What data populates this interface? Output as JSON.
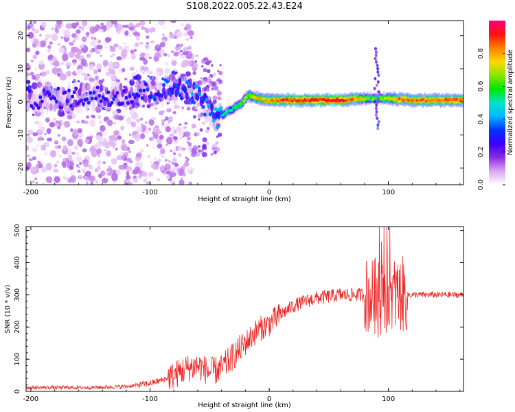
{
  "figure": {
    "title": "S108.2022.005.22.43.E24"
  },
  "chart_data": [
    {
      "type": "heatmap",
      "xlabel": "Height of straight line (km)",
      "ylabel": "Frequency (Hz)",
      "xlim": [
        -204,
        163
      ],
      "ylim": [
        -25,
        24.5
      ],
      "xticks": [
        -200,
        -100,
        0,
        100
      ],
      "yticks": [
        -20,
        -10,
        0,
        10,
        20
      ],
      "colorbar": {
        "label": "Normalized spectral amplitude",
        "range": [
          0,
          1
        ],
        "ticks": [
          0.0,
          0.2,
          0.4,
          0.6,
          0.8
        ],
        "colors": [
          "#ffffff",
          "#d9a6f2",
          "#8a2be2",
          "#3a00ff",
          "#0033ff",
          "#00b7ff",
          "#00e5c8",
          "#00e600",
          "#8ae600",
          "#ffd700",
          "#ff8000",
          "#ff1010",
          "#ff007f"
        ]
      },
      "ridge": [
        {
          "x": -200,
          "y": 1
        },
        {
          "x": -180,
          "y": 1
        },
        {
          "x": -160,
          "y": 1.5
        },
        {
          "x": -140,
          "y": 2
        },
        {
          "x": -120,
          "y": 2
        },
        {
          "x": -100,
          "y": 3
        },
        {
          "x": -85,
          "y": 4
        },
        {
          "x": -70,
          "y": 4
        },
        {
          "x": -60,
          "y": 2
        },
        {
          "x": -52,
          "y": -2
        },
        {
          "x": -44,
          "y": -5
        },
        {
          "x": -35,
          "y": -3
        },
        {
          "x": -25,
          "y": -1
        },
        {
          "x": -17,
          "y": 2
        },
        {
          "x": -10,
          "y": 1
        },
        {
          "x": 0,
          "y": 0.5
        },
        {
          "x": 20,
          "y": 0.5
        },
        {
          "x": 40,
          "y": 0.5
        },
        {
          "x": 60,
          "y": 0.5
        },
        {
          "x": 80,
          "y": 1
        },
        {
          "x": 90,
          "y": 1
        },
        {
          "x": 100,
          "y": 1
        },
        {
          "x": 120,
          "y": 0.5
        },
        {
          "x": 163,
          "y": 0.5
        }
      ],
      "amplitude": [
        {
          "x": -200,
          "v": 0.25
        },
        {
          "x": -150,
          "v": 0.28
        },
        {
          "x": -100,
          "v": 0.3
        },
        {
          "x": -75,
          "v": 0.35
        },
        {
          "x": -50,
          "v": 0.4
        },
        {
          "x": -30,
          "v": 0.55
        },
        {
          "x": -10,
          "v": 0.75
        },
        {
          "x": 20,
          "v": 0.9
        },
        {
          "x": 60,
          "v": 0.95
        },
        {
          "x": 90,
          "v": 0.6
        },
        {
          "x": 110,
          "v": 0.85
        },
        {
          "x": 163,
          "v": 0.85
        }
      ]
    },
    {
      "type": "line",
      "xlabel": "Height of straight line (km)",
      "ylabel": "SNR (10 * v/v)",
      "xlim": [
        -204,
        163
      ],
      "ylim": [
        0,
        512
      ],
      "xticks": [
        -200,
        -100,
        0,
        100
      ],
      "yticks": [
        0,
        100,
        200,
        300,
        400,
        500
      ],
      "series": [
        {
          "color": "#ee2222",
          "trend": [
            {
              "x": -204,
              "y": 12
            },
            {
              "x": -150,
              "y": 12
            },
            {
              "x": -120,
              "y": 15
            },
            {
              "x": -100,
              "y": 25
            },
            {
              "x": -90,
              "y": 35
            },
            {
              "x": -80,
              "y": 50
            },
            {
              "x": -70,
              "y": 70
            },
            {
              "x": -60,
              "y": 80
            },
            {
              "x": -50,
              "y": 60
            },
            {
              "x": -40,
              "y": 70
            },
            {
              "x": -30,
              "y": 110
            },
            {
              "x": -20,
              "y": 150
            },
            {
              "x": -10,
              "y": 190
            },
            {
              "x": 0,
              "y": 210
            },
            {
              "x": 10,
              "y": 240
            },
            {
              "x": 20,
              "y": 265
            },
            {
              "x": 30,
              "y": 280
            },
            {
              "x": 40,
              "y": 290
            },
            {
              "x": 50,
              "y": 295
            },
            {
              "x": 60,
              "y": 300
            },
            {
              "x": 70,
              "y": 300
            },
            {
              "x": 80,
              "y": 300
            },
            {
              "x": 90,
              "y": 290
            },
            {
              "x": 100,
              "y": 300
            },
            {
              "x": 110,
              "y": 300
            },
            {
              "x": 120,
              "y": 300
            },
            {
              "x": 163,
              "y": 300
            }
          ]
        }
      ]
    }
  ]
}
